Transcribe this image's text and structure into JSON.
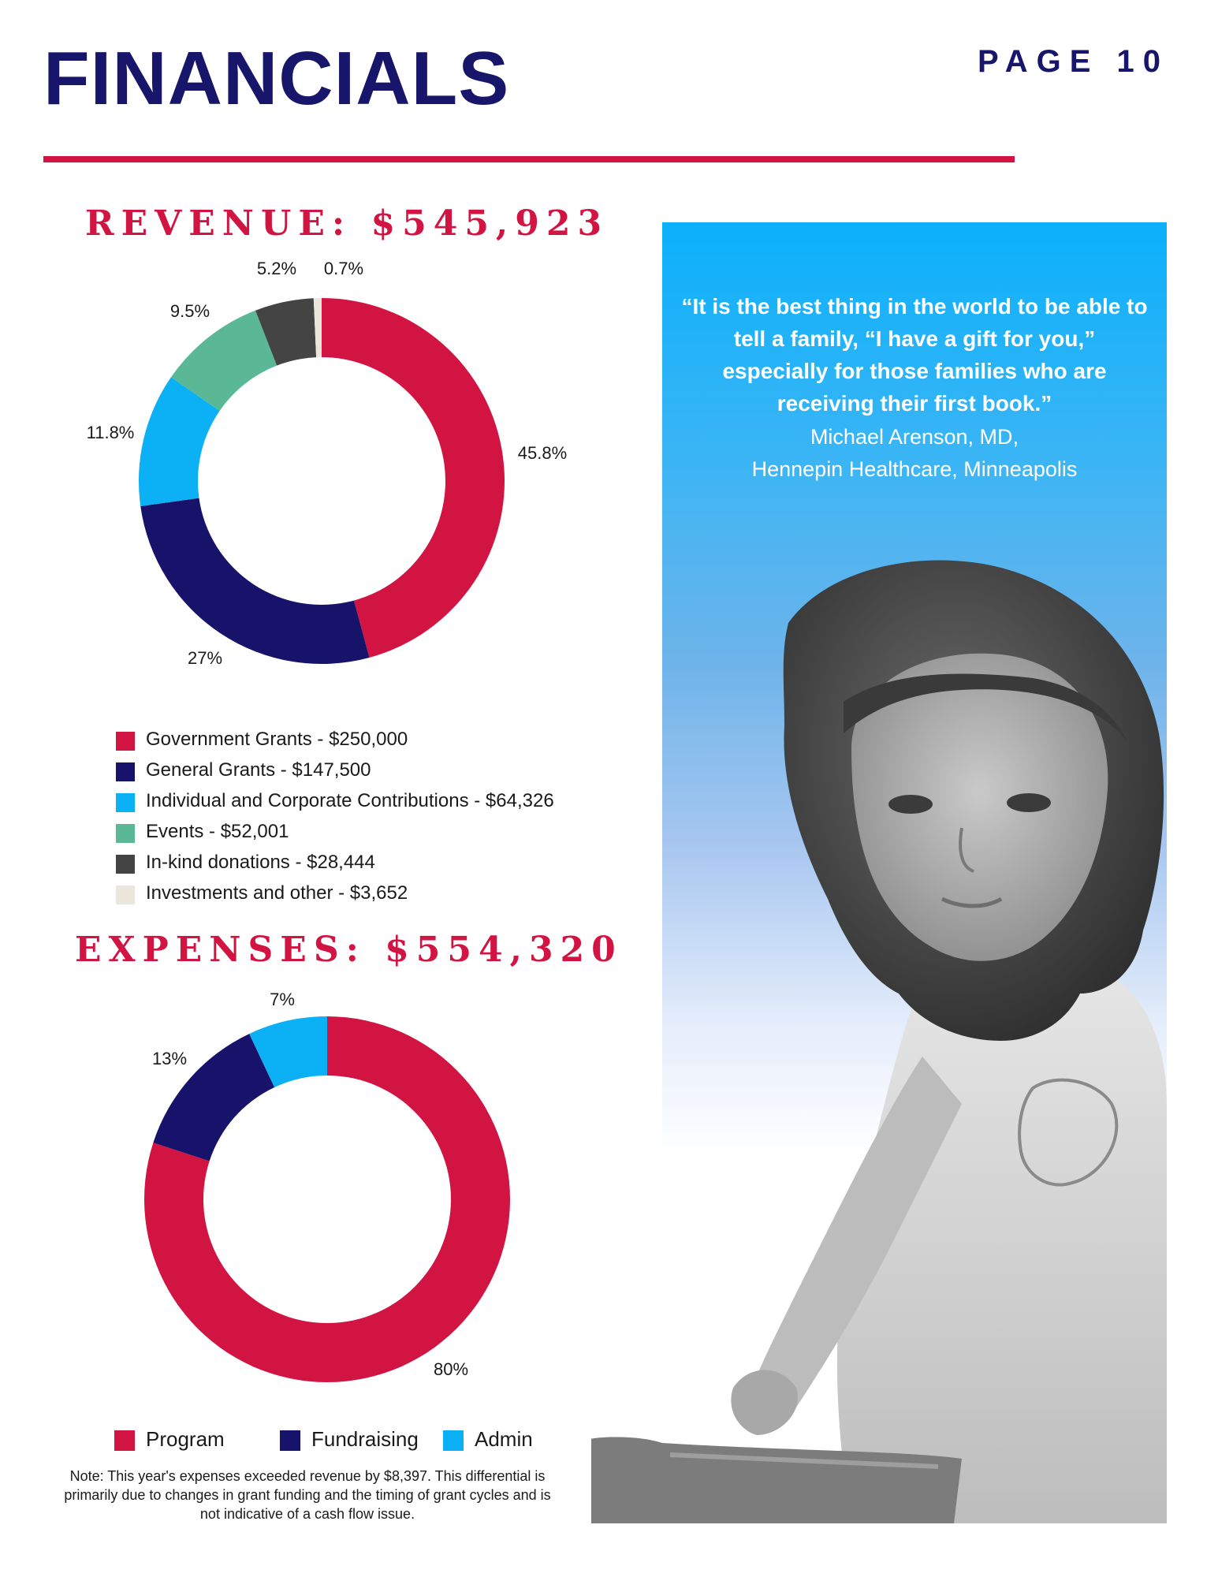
{
  "header": {
    "title": "FINANCIALS",
    "page_label": "PAGE 10"
  },
  "revenue": {
    "heading": "REVENUE: $545,923",
    "legend": [
      {
        "label": "Government Grants - $250,000",
        "color": "#d21443"
      },
      {
        "label": "General Grants  - $147,500",
        "color": "#17126a"
      },
      {
        "label": "Individual and Corporate Contributions - $64,326",
        "color": "#0bb0f5"
      },
      {
        "label": "Events - $52,001",
        "color": "#5bb897"
      },
      {
        "label": "In-kind donations - $28,444",
        "color": "#444444"
      },
      {
        "label": "Investments and other - $3,652",
        "color": "#ebe6dc"
      }
    ]
  },
  "expenses": {
    "heading": "EXPENSES: $554,320",
    "legend": [
      {
        "label": "Program",
        "color": "#d21443"
      },
      {
        "label": "Fundraising",
        "color": "#17126a"
      },
      {
        "label": "Admin",
        "color": "#0bb0f5"
      }
    ],
    "note": "Note: This year's expenses exceeded revenue by $8,397. This differential is primarily due to changes in grant funding and the timing of grant cycles and is not indicative of a cash flow issue."
  },
  "quote": {
    "text": "“It is the best thing in the world to be able to tell a family, “I have a gift for you,” especially for those families who are receiving their first book.”",
    "attribution_name": "Michael Arenson, MD,",
    "attribution_org": "Hennepin Healthcare, Minneapolis"
  },
  "chart_data": [
    {
      "type": "pie",
      "variant": "donut",
      "title": "REVENUE: $545,923",
      "categories": [
        "Government Grants",
        "General Grants",
        "Individual and Corporate Contributions",
        "Events",
        "In-kind donations",
        "Investments and other"
      ],
      "values": [
        45.8,
        27,
        11.8,
        9.5,
        5.2,
        0.7
      ],
      "labels": [
        "45.8%",
        "27%",
        "11.8%",
        "9.5%",
        "5.2%",
        "0.7%"
      ],
      "amounts": [
        250000,
        147500,
        64326,
        52001,
        28444,
        3652
      ],
      "colors": [
        "#d21443",
        "#17126a",
        "#0bb0f5",
        "#5bb897",
        "#444444",
        "#ebe6dc"
      ]
    },
    {
      "type": "pie",
      "variant": "donut",
      "title": "EXPENSES: $554,320",
      "categories": [
        "Program",
        "Fundraising",
        "Admin"
      ],
      "values": [
        80,
        13,
        7
      ],
      "labels": [
        "80%",
        "13%",
        "7%"
      ],
      "colors": [
        "#d21443",
        "#17126a",
        "#0bb0f5"
      ]
    }
  ]
}
